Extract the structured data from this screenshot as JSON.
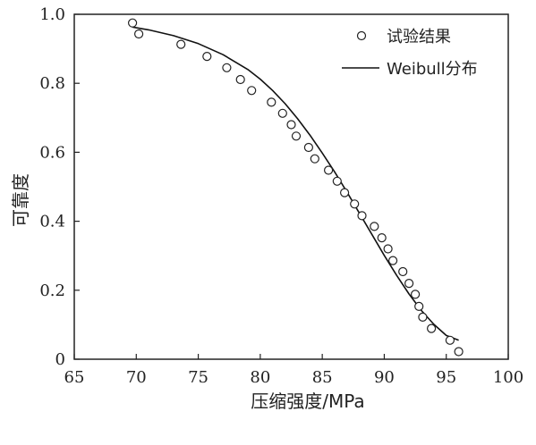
{
  "chart_data": {
    "type": "scatter",
    "title": "",
    "xlabel": "压缩强度/MPa",
    "ylabel": "可靠度",
    "xlim": [
      65,
      100
    ],
    "ylim": [
      0,
      1.0
    ],
    "x_ticks": [
      65,
      70,
      75,
      80,
      85,
      90,
      95,
      100
    ],
    "y_ticks": [
      0,
      0.2,
      0.4,
      0.6,
      0.8,
      1.0
    ],
    "x_tick_labels": [
      "65",
      "70",
      "75",
      "80",
      "85",
      "90",
      "95",
      "100"
    ],
    "y_tick_labels": [
      "0",
      "0.2",
      "0.4",
      "0.6",
      "0.8",
      "1.0"
    ],
    "grid": false,
    "legend_position": "top-right",
    "series": [
      {
        "name": "试验结果",
        "type": "scatter",
        "marker": "open-circle",
        "x": [
          69.7,
          70.2,
          73.6,
          75.7,
          77.3,
          78.4,
          79.3,
          80.9,
          81.8,
          82.5,
          82.9,
          83.9,
          84.4,
          85.5,
          86.2,
          86.8,
          87.6,
          88.2,
          89.2,
          89.8,
          90.3,
          90.7,
          91.5,
          92.0,
          92.5,
          92.8,
          93.1,
          93.8,
          95.3,
          96.0
        ],
        "y": [
          0.975,
          0.943,
          0.913,
          0.878,
          0.845,
          0.811,
          0.779,
          0.745,
          0.713,
          0.68,
          0.647,
          0.614,
          0.581,
          0.548,
          0.516,
          0.483,
          0.45,
          0.416,
          0.385,
          0.352,
          0.32,
          0.286,
          0.254,
          0.22,
          0.188,
          0.153,
          0.122,
          0.089,
          0.055,
          0.022
        ]
      },
      {
        "name": "Weibull分布",
        "type": "line",
        "x": [
          69.7,
          71,
          73,
          75,
          77,
          79,
          80,
          81,
          82,
          83,
          84,
          85,
          86,
          87,
          88,
          89,
          90,
          91,
          92,
          93,
          94,
          95,
          96
        ],
        "y": [
          0.963,
          0.955,
          0.938,
          0.915,
          0.883,
          0.84,
          0.812,
          0.779,
          0.741,
          0.698,
          0.65,
          0.598,
          0.543,
          0.484,
          0.423,
          0.362,
          0.301,
          0.243,
          0.189,
          0.141,
          0.101,
          0.069,
          0.055
        ]
      }
    ]
  }
}
